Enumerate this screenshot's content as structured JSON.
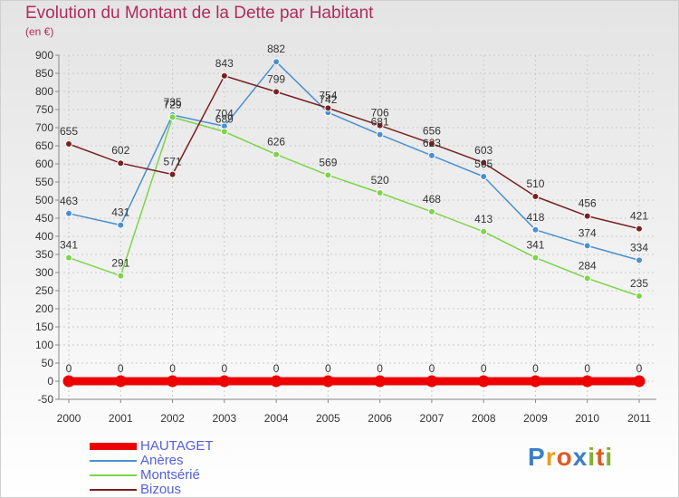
{
  "header": {
    "title": "Evolution du Montant de la Dette par Habitant",
    "subtitle": "(en €)"
  },
  "logo": {
    "text": "Proxiti",
    "colors": [
      "#3a7fc8",
      "#e8a020",
      "#e05a20",
      "#3a7fc8",
      "#80b030",
      "#e05a20",
      "#80b030"
    ]
  },
  "chart_data": {
    "type": "line",
    "x": [
      "2000",
      "2001",
      "2002",
      "2003",
      "2004",
      "2005",
      "2006",
      "2007",
      "2008",
      "2009",
      "2010",
      "2011"
    ],
    "ylim": [
      -50,
      900
    ],
    "yticks": [
      -50,
      0,
      50,
      100,
      150,
      200,
      250,
      300,
      350,
      400,
      450,
      500,
      550,
      600,
      650,
      700,
      750,
      800,
      850,
      900
    ],
    "grid": true,
    "legend": "bottom-left",
    "series": [
      {
        "name": "HAUTAGET",
        "color": "#ee0000",
        "values": [
          0,
          0,
          0,
          0,
          0,
          0,
          0,
          0,
          0,
          0,
          0,
          0
        ]
      },
      {
        "name": "Anères",
        "color": "#4a90d0",
        "values": [
          463,
          431,
          735,
          704,
          882,
          742,
          681,
          623,
          565,
          418,
          374,
          334
        ]
      },
      {
        "name": "Montsérié",
        "color": "#7cd44a",
        "values": [
          341,
          291,
          729,
          689,
          626,
          569,
          520,
          468,
          413,
          341,
          284,
          235
        ]
      },
      {
        "name": "Bizous",
        "color": "#7a2020",
        "values": [
          655,
          602,
          571,
          843,
          799,
          754,
          706,
          656,
          603,
          510,
          456,
          421
        ]
      }
    ]
  }
}
